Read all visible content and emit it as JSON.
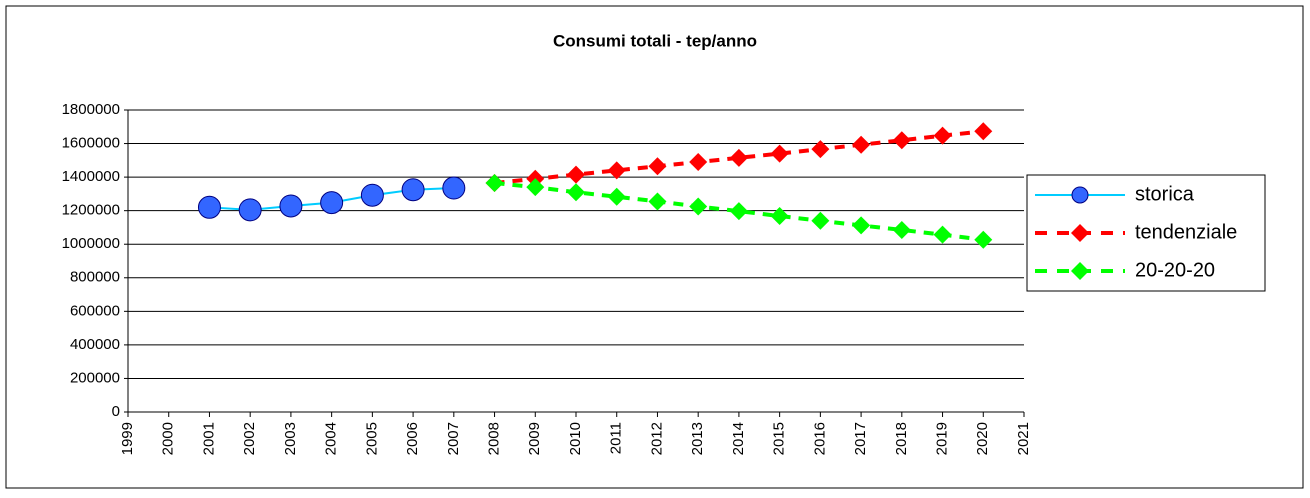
{
  "chart_data": {
    "type": "line",
    "title": "Consumi totali - tep/anno",
    "x": [
      1999,
      2000,
      2001,
      2002,
      2003,
      2004,
      2005,
      2006,
      2007,
      2008,
      2009,
      2010,
      2011,
      2012,
      2013,
      2014,
      2015,
      2016,
      2017,
      2018,
      2019,
      2020,
      2021
    ],
    "xlim": [
      1999,
      2021
    ],
    "xticks": [
      1999,
      2000,
      2001,
      2002,
      2003,
      2004,
      2005,
      2006,
      2007,
      2008,
      2009,
      2010,
      2011,
      2012,
      2013,
      2014,
      2015,
      2016,
      2017,
      2018,
      2019,
      2020,
      2021
    ],
    "ylim": [
      0,
      1800000
    ],
    "yticks": [
      0,
      200000,
      400000,
      600000,
      800000,
      1000000,
      1200000,
      1400000,
      1600000,
      1800000
    ],
    "grid": true,
    "legend": "right",
    "series": [
      {
        "name": "storica",
        "color": "#3366ff",
        "line_color": "#00ccff",
        "marker": "circle",
        "dash": false,
        "values": [
          null,
          null,
          1220000,
          1205000,
          1228000,
          1248000,
          1292000,
          1325000,
          1335000,
          null,
          null,
          null,
          null,
          null,
          null,
          null,
          null,
          null,
          null,
          null,
          null,
          null,
          null
        ]
      },
      {
        "name": "tendenziale",
        "color": "#ff0000",
        "line_color": "#ff0000",
        "marker": "diamond",
        "dash": true,
        "values": [
          null,
          null,
          null,
          null,
          null,
          null,
          null,
          null,
          null,
          1365000,
          1390000,
          1415000,
          1440000,
          1465000,
          1490000,
          1515000,
          1540000,
          1567000,
          1593000,
          1620000,
          1647000,
          1673000,
          null
        ]
      },
      {
        "name": "20-20-20",
        "color": "#00ff00",
        "line_color": "#00ff00",
        "marker": "diamond",
        "dash": true,
        "values": [
          null,
          null,
          null,
          null,
          null,
          null,
          null,
          null,
          null,
          1365000,
          1340000,
          1310000,
          1283000,
          1255000,
          1225000,
          1197000,
          1168000,
          1140000,
          1112000,
          1085000,
          1057000,
          1027000,
          null
        ]
      }
    ]
  }
}
